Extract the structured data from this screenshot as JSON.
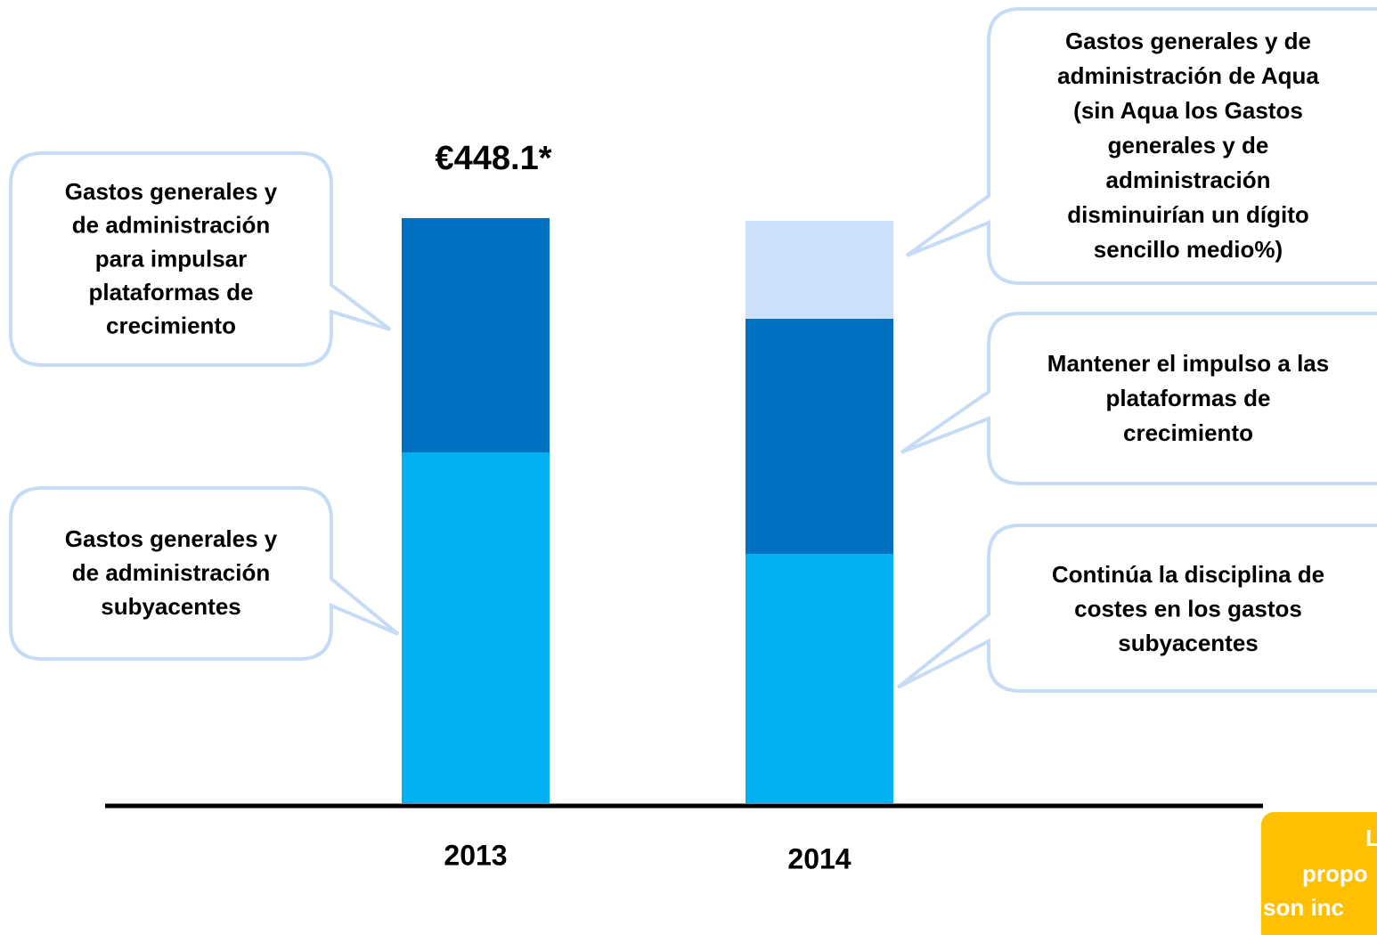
{
  "chart_data": {
    "type": "stacked_bar",
    "categories": [
      "2013",
      "2014"
    ],
    "series": [
      {
        "color": "#00b0f0",
        "values": [
          268.7,
          191.0
        ]
      },
      {
        "color": "#0070c0",
        "values": [
          179.4,
          180.1
        ]
      },
      {
        "color": "#cce0fb",
        "values": [
          null,
          75.0
        ]
      }
    ],
    "annotations": [
      {
        "text": "€448.1*",
        "category": "2013"
      },
      {
        "lines": [
          "Gastos generales y",
          "de administración",
          "para impulsar",
          "plataformas de",
          "crecimiento"
        ]
      },
      {
        "lines": [
          "Gastos generales y",
          "de administración",
          "subyacentes"
        ]
      },
      {
        "lines": [
          "Gastos generales y de",
          "administración de Aqua",
          "(sin Aqua los Gastos",
          "generales y de",
          "administración",
          "disminuirían un dígito",
          "sencillo medio%)"
        ]
      },
      {
        "lines": [
          "Mantener el impulso a las",
          "plataformas de",
          "crecimiento"
        ]
      },
      {
        "lines": [
          "Continúa  la disciplina de",
          "costes en los gastos",
          "subyacentes"
        ]
      }
    ],
    "note": [
      "L",
      "propo",
      "son inc"
    ]
  }
}
